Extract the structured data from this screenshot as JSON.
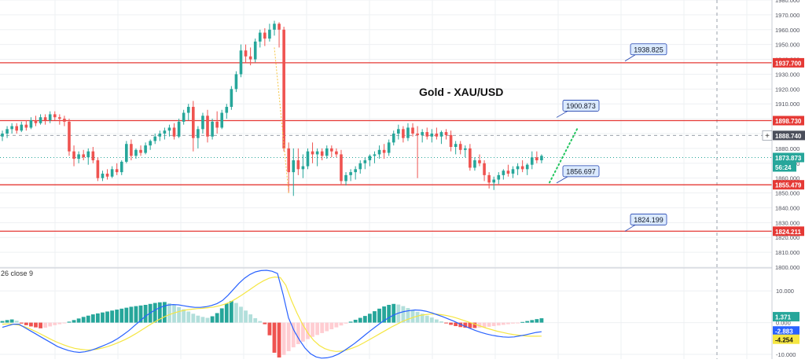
{
  "chart_data": {
    "type": "candlestick",
    "title": "Gold - XAU/USD",
    "price_axis": {
      "ylim": [
        1800,
        1980
      ],
      "tick_labels": [
        "1980.000",
        "1970.000",
        "1960.000",
        "1950.000",
        "1940.000",
        "1930.000",
        "1920.000",
        "1910.000",
        "1900.000",
        "1890.000",
        "1880.000",
        "1870.000",
        "1860.000",
        "1850.000",
        "1840.000",
        "1830.000",
        "1820.000",
        "1810.000",
        "1800.000"
      ],
      "tick_values": [
        1980,
        1970,
        1960,
        1950,
        1940,
        1930,
        1920,
        1910,
        1900,
        1890,
        1880,
        1870,
        1860,
        1850,
        1840,
        1830,
        1820,
        1810,
        1800
      ]
    },
    "colors": {
      "up": "#26a69a",
      "down": "#ef5350",
      "level_line": "#e53935",
      "current_price": "#26a69a",
      "macd_line": "#2962ff",
      "signal_line": "#f5e642",
      "annotation_fill": "#dbeafe",
      "annotation_border": "#1e40af",
      "trend_dots": "#22c55e"
    },
    "candles": [
      [
        1888,
        1892,
        1885,
        1890
      ],
      [
        1890,
        1895,
        1887,
        1893
      ],
      [
        1893,
        1897,
        1890,
        1895
      ],
      [
        1895,
        1897,
        1890,
        1892
      ],
      [
        1892,
        1898,
        1891,
        1896
      ],
      [
        1896,
        1899,
        1892,
        1894
      ],
      [
        1894,
        1901,
        1893,
        1899
      ],
      [
        1899,
        1902,
        1895,
        1897
      ],
      [
        1897,
        1903,
        1896,
        1901
      ],
      [
        1901,
        1903,
        1896,
        1899
      ],
      [
        1899,
        1905,
        1897,
        1903
      ],
      [
        1903,
        1905,
        1899,
        1901
      ],
      [
        1901,
        1903,
        1896,
        1900
      ],
      [
        1900,
        1902,
        1895,
        1898
      ],
      [
        1898,
        1900,
        1875,
        1878
      ],
      [
        1878,
        1882,
        1868,
        1873
      ],
      [
        1873,
        1878,
        1870,
        1876
      ],
      [
        1876,
        1879,
        1872,
        1874
      ],
      [
        1874,
        1880,
        1869,
        1878
      ],
      [
        1878,
        1881,
        1870,
        1872
      ],
      [
        1872,
        1874,
        1858,
        1860
      ],
      [
        1860,
        1865,
        1858,
        1863
      ],
      [
        1863,
        1866,
        1859,
        1861
      ],
      [
        1861,
        1868,
        1860,
        1866
      ],
      [
        1866,
        1870,
        1862,
        1864
      ],
      [
        1864,
        1872,
        1862,
        1871
      ],
      [
        1871,
        1885,
        1870,
        1883
      ],
      [
        1883,
        1886,
        1872,
        1875
      ],
      [
        1875,
        1880,
        1873,
        1879
      ],
      [
        1879,
        1882,
        1875,
        1877
      ],
      [
        1877,
        1884,
        1876,
        1882
      ],
      [
        1882,
        1886,
        1879,
        1885
      ],
      [
        1885,
        1890,
        1883,
        1888
      ],
      [
        1888,
        1892,
        1885,
        1890
      ],
      [
        1890,
        1894,
        1886,
        1892
      ],
      [
        1892,
        1896,
        1888,
        1894
      ],
      [
        1894,
        1897,
        1886,
        1888
      ],
      [
        1888,
        1900,
        1887,
        1898
      ],
      [
        1898,
        1906,
        1896,
        1904
      ],
      [
        1904,
        1910,
        1899,
        1908
      ],
      [
        1908,
        1912,
        1878,
        1887
      ],
      [
        1887,
        1895,
        1880,
        1893
      ],
      [
        1893,
        1904,
        1890,
        1902
      ],
      [
        1902,
        1906,
        1884,
        1888
      ],
      [
        1888,
        1900,
        1886,
        1898
      ],
      [
        1898,
        1905,
        1890,
        1894
      ],
      [
        1894,
        1906,
        1893,
        1904
      ],
      [
        1904,
        1910,
        1900,
        1908
      ],
      [
        1908,
        1922,
        1906,
        1920
      ],
      [
        1920,
        1932,
        1918,
        1930
      ],
      [
        1930,
        1950,
        1928,
        1946
      ],
      [
        1946,
        1950,
        1938,
        1942
      ],
      [
        1942,
        1948,
        1936,
        1940
      ],
      [
        1940,
        1954,
        1938,
        1952
      ],
      [
        1952,
        1960,
        1948,
        1958
      ],
      [
        1958,
        1961,
        1949,
        1954
      ],
      [
        1954,
        1964,
        1952,
        1960
      ],
      [
        1960,
        1966,
        1956,
        1964
      ],
      [
        1964,
        1965,
        1948,
        1960
      ],
      [
        1960,
        1962,
        1878,
        1880
      ],
      [
        1880,
        1884,
        1850,
        1864
      ],
      [
        1864,
        1880,
        1848,
        1872
      ],
      [
        1872,
        1880,
        1862,
        1866
      ],
      [
        1866,
        1876,
        1860,
        1868
      ],
      [
        1868,
        1880,
        1866,
        1878
      ],
      [
        1878,
        1884,
        1870,
        1876
      ],
      [
        1876,
        1880,
        1868,
        1878
      ],
      [
        1878,
        1880,
        1872,
        1875
      ],
      [
        1875,
        1882,
        1873,
        1880
      ],
      [
        1880,
        1882,
        1874,
        1878
      ],
      [
        1878,
        1880,
        1874,
        1876
      ],
      [
        1876,
        1879,
        1856,
        1858
      ],
      [
        1858,
        1864,
        1855,
        1862
      ],
      [
        1862,
        1866,
        1858,
        1864
      ],
      [
        1864,
        1868,
        1859,
        1866
      ],
      [
        1866,
        1872,
        1863,
        1870
      ],
      [
        1870,
        1874,
        1866,
        1872
      ],
      [
        1872,
        1876,
        1868,
        1875
      ],
      [
        1875,
        1878,
        1870,
        1876
      ],
      [
        1876,
        1882,
        1873,
        1879
      ],
      [
        1879,
        1883,
        1873,
        1877
      ],
      [
        1877,
        1886,
        1875,
        1884
      ],
      [
        1884,
        1892,
        1882,
        1890
      ],
      [
        1890,
        1896,
        1886,
        1893
      ],
      [
        1893,
        1895,
        1884,
        1887
      ],
      [
        1887,
        1897,
        1885,
        1894
      ],
      [
        1894,
        1897,
        1888,
        1890
      ],
      [
        1890,
        1895,
        1860,
        1889
      ],
      [
        1889,
        1893,
        1884,
        1891
      ],
      [
        1891,
        1894,
        1886,
        1888
      ],
      [
        1888,
        1893,
        1884,
        1890
      ],
      [
        1890,
        1894,
        1886,
        1888
      ],
      [
        1888,
        1892,
        1883,
        1891
      ],
      [
        1891,
        1893,
        1886,
        1889
      ],
      [
        1889,
        1892,
        1878,
        1881
      ],
      [
        1881,
        1885,
        1876,
        1883
      ],
      [
        1883,
        1885,
        1876,
        1879
      ],
      [
        1879,
        1882,
        1874,
        1880
      ],
      [
        1880,
        1883,
        1865,
        1867
      ],
      [
        1867,
        1874,
        1865,
        1872
      ],
      [
        1872,
        1876,
        1868,
        1870
      ],
      [
        1870,
        1872,
        1858,
        1862
      ],
      [
        1862,
        1864,
        1853,
        1857
      ],
      [
        1857,
        1861,
        1852,
        1859
      ],
      [
        1859,
        1864,
        1856,
        1862
      ],
      [
        1862,
        1866,
        1859,
        1865
      ],
      [
        1865,
        1869,
        1861,
        1863
      ],
      [
        1863,
        1868,
        1860,
        1866
      ],
      [
        1866,
        1870,
        1862,
        1868
      ],
      [
        1868,
        1872,
        1864,
        1866
      ],
      [
        1866,
        1870,
        1862,
        1869
      ],
      [
        1869,
        1878,
        1866,
        1874
      ],
      [
        1874,
        1878,
        1870,
        1872
      ],
      [
        1872,
        1876,
        1870,
        1875
      ]
    ],
    "horizontal_levels": [
      {
        "value": 1937.7,
        "label": "1937.700"
      },
      {
        "value": 1898.73,
        "label": "1898.730"
      },
      {
        "value": 1855.479,
        "label": "1855.479"
      },
      {
        "value": 1824.211,
        "label": "1824.211"
      }
    ],
    "current_price": {
      "value": 1873.873,
      "label": "1873.873",
      "countdown": "56:24"
    },
    "crosshair": {
      "value": 1888.74,
      "label": "1888.740"
    },
    "annotations": [
      {
        "label": "1938.825",
        "value": 1938.825
      },
      {
        "label": "1900.873",
        "value": 1900.873
      },
      {
        "label": "1856.697",
        "value": 1856.697
      },
      {
        "label": "1824.199",
        "value": 1824.199
      }
    ],
    "trend_projection": {
      "from": 1857,
      "to": 1894
    },
    "macd": {
      "legend": "26 close 9",
      "ylim": [
        -11.5,
        17
      ],
      "tick_labels": [
        "10.000",
        "0.000",
        "-10.000"
      ],
      "tick_values": [
        10,
        0,
        -10
      ],
      "values": {
        "histogram": "1.371",
        "macd": "-2.883",
        "signal": "-4.254"
      },
      "histogram": [
        0.5,
        0.8,
        1,
        0.6,
        -0.3,
        -0.8,
        -1.2,
        -1.5,
        -1.8,
        -1.6,
        -1.2,
        -0.8,
        -0.5,
        -0.2,
        0.3,
        0.8,
        1.3,
        1.8,
        2.2,
        2.6,
        2.9,
        3.2,
        3.5,
        3.8,
        4.1,
        4.4,
        4.7,
        5,
        5.2,
        5.4,
        5.6,
        5.9,
        6.2,
        6.4,
        6.5,
        6.1,
        5.6,
        4.9,
        4.2,
        3.5,
        2.8,
        2.2,
        1.8,
        1.5,
        2,
        3,
        4.5,
        6,
        6.8,
        6.2,
        5,
        3.8,
        2.6,
        1.4,
        0.5,
        -0.5,
        -4,
        -9.5,
        -11,
        -10.2,
        -9,
        -7.8,
        -6.8,
        -6,
        -5.2,
        -4.5,
        -3.9,
        -3.3,
        -2.7,
        -2.1,
        -1.5,
        -0.9,
        -0.3,
        0.3,
        0.9,
        1.5,
        2.1,
        2.8,
        3.6,
        4.4,
        5.1,
        5.6,
        5.9,
        5.7,
        5.2,
        4.6,
        4,
        3.4,
        2.8,
        2.2,
        1.6,
        1.0,
        0.4,
        -0.2,
        -0.7,
        -1.1,
        -1.4,
        -1.6,
        -1.7,
        -1.7,
        -1.6,
        -1.5,
        -1.3,
        -1.1,
        -0.9,
        -0.7,
        -0.5,
        -0.3,
        -0.1,
        0.2,
        0.5,
        0.8,
        1.1,
        1.371
      ],
      "macd_line": [
        -1.5,
        -1,
        -0.5,
        -0.5,
        -1.5,
        -2.5,
        -3.5,
        -4.5,
        -5.5,
        -6.5,
        -7.5,
        -8.2,
        -8.8,
        -9.2,
        -9.4,
        -9.2,
        -8.8,
        -8.2,
        -7.5,
        -6.8,
        -6,
        -5,
        -3.8,
        -2.5,
        -1,
        0.5,
        2,
        3.2,
        4.2,
        5,
        5.5,
        5.7,
        5.6,
        5.3,
        5,
        4.8,
        4.8,
        5,
        5.4,
        6,
        7,
        8.6,
        10.5,
        12.4,
        14,
        15.2,
        16,
        16.4,
        16.5,
        16.2,
        15.5,
        9,
        1.5,
        -2.5,
        -5.5,
        -8,
        -9.8,
        -10.8,
        -11.2,
        -11.1,
        -10.7,
        -10,
        -9,
        -7.8,
        -6.6,
        -5.2,
        -3.8,
        -2.4,
        -1.1,
        0.2,
        1.3,
        2.3,
        3,
        3.5,
        3.8,
        4,
        3.9,
        3.6,
        3.1,
        2.5,
        1.9,
        1.2,
        0.5,
        -0.3,
        -1.1,
        -1.8,
        -2.5,
        -3.1,
        -3.6,
        -4,
        -4.3,
        -4.5,
        -4.6,
        -4.5,
        -4.2,
        -3.9,
        -3.5,
        -3.1,
        -2.883
      ],
      "signal_line": [
        -0.5,
        -0.4,
        -0.5,
        -0.8,
        -1.3,
        -2,
        -2.8,
        -3.7,
        -4.6,
        -5.5,
        -6.3,
        -7,
        -7.6,
        -8.1,
        -8.4,
        -8.6,
        -8.6,
        -8.4,
        -8,
        -7.5,
        -6.9,
        -6.2,
        -5.4,
        -4.5,
        -3.5,
        -2.4,
        -1.3,
        -0.2,
        0.8,
        1.7,
        2.5,
        3.1,
        3.6,
        4,
        4.2,
        4.4,
        4.5,
        4.7,
        4.9,
        5.3,
        5.8,
        6.5,
        7.5,
        8.6,
        9.8,
        11,
        12.2,
        13.2,
        14,
        14.4,
        14.2,
        11.8,
        7,
        3,
        -0.5,
        -3.4,
        -5.6,
        -7.2,
        -8.2,
        -8.8,
        -9.1,
        -9,
        -8.6,
        -8,
        -7.3,
        -6.4,
        -5.4,
        -4.4,
        -3.4,
        -2.4,
        -1.4,
        -0.5,
        0.4,
        1.1,
        1.7,
        2.2,
        2.5,
        2.7,
        2.7,
        2.5,
        2.2,
        1.8,
        1.3,
        0.7,
        0.1,
        -0.5,
        -1.1,
        -1.7,
        -2.2,
        -2.7,
        -3.1,
        -3.5,
        -3.8,
        -4,
        -4.2,
        -4.3,
        -4.3,
        -4.254
      ]
    }
  }
}
